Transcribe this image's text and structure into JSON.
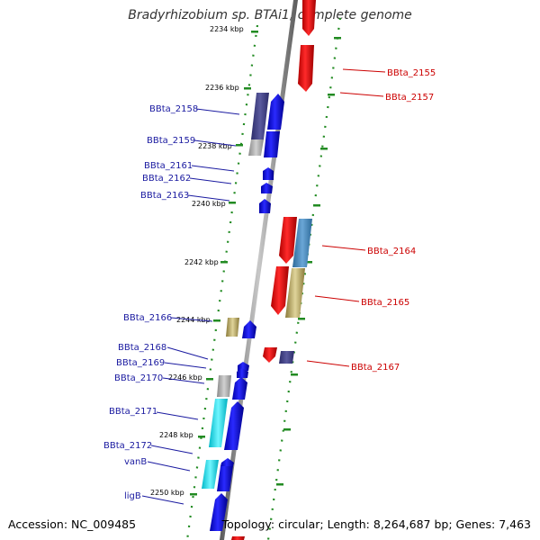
{
  "title": "Bradyrhizobium sp. BTAi1, complete genome",
  "accession": "Accession: NC_009485",
  "topology": "Topology: circular; Length: 8,264,687 bp; Genes: 7,463",
  "colors": {
    "label_left": "#1a1aa0",
    "label_right": "#cc0000",
    "forward_gene": "#0000ff",
    "reverse_gene": "#ff0000",
    "axis": "#909090",
    "ruler": "#228b22"
  },
  "kbp_ticks": [
    "2234 kbp",
    "2236 kbp",
    "2238 kbp",
    "2240 kbp",
    "2242 kbp",
    "2244 kbp",
    "2246 kbp",
    "2248 kbp",
    "2250 kbp"
  ],
  "left_labels": [
    "BBta_2158",
    "BBta_2159",
    "BBta_2161",
    "BBta_2162",
    "BBta_2163",
    "BBta_2166",
    "BBta_2168",
    "BBta_2169",
    "BBta_2170",
    "BBta_2171",
    "BBta_2172",
    "vanB",
    "ligB"
  ],
  "right_labels": [
    "BBta_2155",
    "BBta_2157",
    "BBta_2164",
    "BBta_2165",
    "BBta_2167"
  ]
}
